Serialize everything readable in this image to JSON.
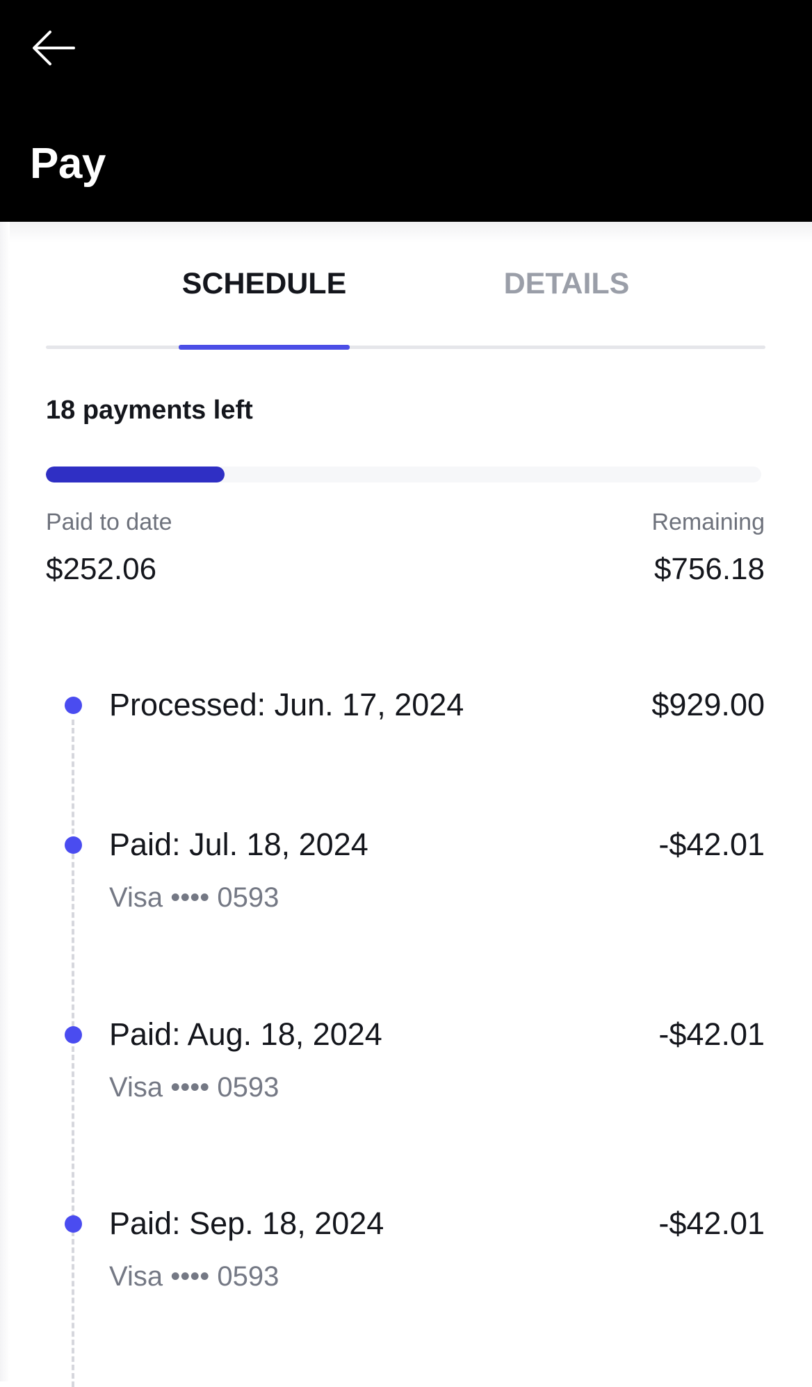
{
  "header": {
    "title": "Pay",
    "back_icon": "arrow-left-icon"
  },
  "tabs": [
    {
      "label": "SCHEDULE",
      "active": true
    },
    {
      "label": "DETAILS",
      "active": false
    }
  ],
  "summary": {
    "payments_left": "18 payments left",
    "progress_fraction": 0.25,
    "paid_label": "Paid to date",
    "paid_value": "$252.06",
    "remaining_label": "Remaining",
    "remaining_value": "$756.18"
  },
  "timeline": [
    {
      "title": "Processed: Jun. 17, 2024",
      "amount": "$929.00",
      "sub": ""
    },
    {
      "title": "Paid: Jul. 18, 2024",
      "amount": "-$42.01",
      "sub": "Visa •••• 0593"
    },
    {
      "title": "Paid: Aug. 18, 2024",
      "amount": "-$42.01",
      "sub": "Visa •••• 0593"
    },
    {
      "title": "Paid: Sep. 18, 2024",
      "amount": "-$42.01",
      "sub": "Visa •••• 0593"
    }
  ],
  "colors": {
    "accent": "#4b4ee6",
    "progress": "#2f2fc4",
    "dot": "#4a4cf0"
  }
}
